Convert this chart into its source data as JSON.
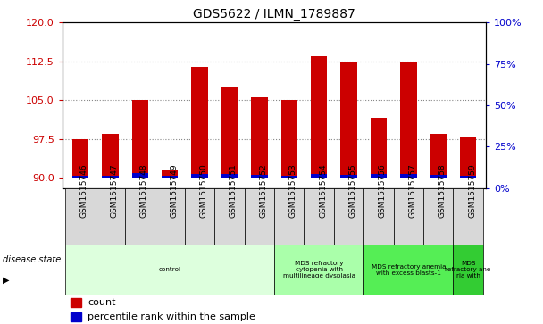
{
  "title": "GDS5622 / ILMN_1789887",
  "samples": [
    "GSM1515746",
    "GSM1515747",
    "GSM1515748",
    "GSM1515749",
    "GSM1515750",
    "GSM1515751",
    "GSM1515752",
    "GSM1515753",
    "GSM1515754",
    "GSM1515755",
    "GSM1515756",
    "GSM1515757",
    "GSM1515758",
    "GSM1515759"
  ],
  "count_values": [
    97.5,
    98.5,
    105.0,
    91.5,
    111.5,
    107.5,
    105.5,
    105.0,
    113.5,
    112.5,
    101.5,
    112.5,
    98.5,
    98.0
  ],
  "percentile_values": [
    2,
    2,
    5,
    2,
    4,
    4,
    3,
    2,
    4,
    3,
    4,
    4,
    3,
    2
  ],
  "bar_bottom": 90,
  "ylim_left": [
    88,
    120
  ],
  "ylim_right": [
    0,
    100
  ],
  "yticks_left": [
    90,
    97.5,
    105,
    112.5,
    120
  ],
  "yticks_right": [
    0,
    25,
    50,
    75,
    100
  ],
  "count_color": "#cc0000",
  "percentile_color": "#0000cc",
  "disease_groups": [
    {
      "label": "control",
      "start": 0,
      "end": 7,
      "color": "#ddffdd"
    },
    {
      "label": "MDS refractory\ncytopenia with\nmultilineage dysplasia",
      "start": 7,
      "end": 10,
      "color": "#aaffaa"
    },
    {
      "label": "MDS refractory anemia\nwith excess blasts-1",
      "start": 10,
      "end": 13,
      "color": "#55ee55"
    },
    {
      "label": "MDS\nrefractory ane\nria with",
      "start": 13,
      "end": 14,
      "color": "#33cc33"
    }
  ],
  "disease_state_label": "disease state",
  "legend_count": "count",
  "legend_percentile": "percentile rank within the sample",
  "grid_color": "#888888",
  "bg_color": "#ffffff",
  "sample_box_color": "#d8d8d8",
  "spine_color": "#000000"
}
